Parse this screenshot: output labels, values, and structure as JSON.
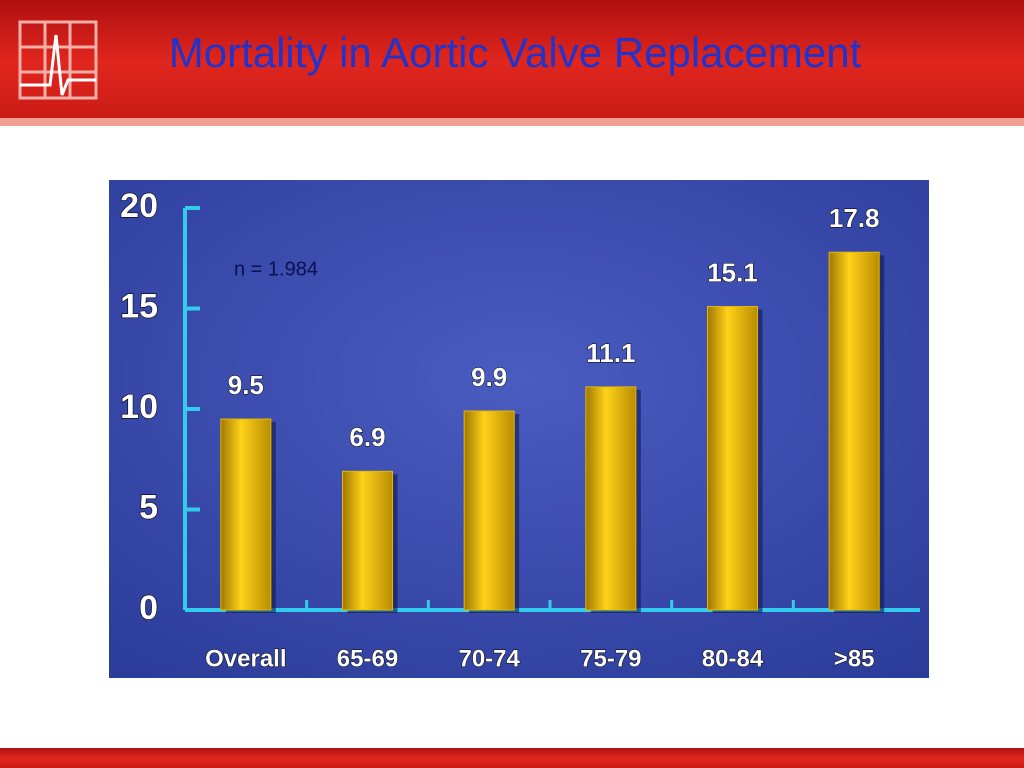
{
  "chart_data": {
    "type": "bar",
    "title": "Mortality in Aortic Valve Replacement",
    "annotation": "n = 1.984",
    "categories": [
      "Overall",
      "65-69",
      "70-74",
      "75-79",
      "80-84",
      ">85"
    ],
    "values": [
      9.5,
      6.9,
      9.9,
      11.1,
      15.1,
      17.8
    ],
    "color": "#e8b800",
    "ylim": [
      0,
      20
    ],
    "yticks": [
      0,
      5,
      10,
      15,
      20
    ]
  }
}
